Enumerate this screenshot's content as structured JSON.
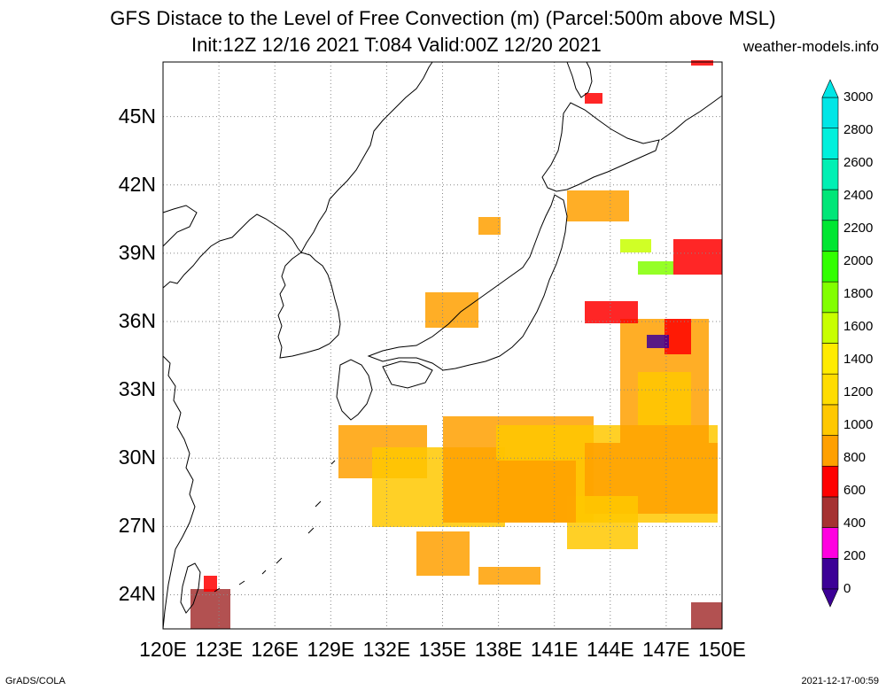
{
  "title": {
    "line1": "GFS Distace to the Level of Free Convection (m) (Parcel:500m above MSL)",
    "line2": "Init:12Z 12/16 2021 T:084 Valid:00Z 12/20 2021",
    "site": "weather-models.info"
  },
  "footer": {
    "left": "GrADS/COLA",
    "right": "2021-12-17-00:59"
  },
  "map": {
    "lon_range": [
      120,
      150
    ],
    "lat_range": [
      22.5,
      47.4
    ],
    "lon_labels": [
      "120E",
      "123E",
      "126E",
      "129E",
      "132E",
      "135E",
      "138E",
      "141E",
      "144E",
      "147E",
      "150E"
    ],
    "lat_labels": [
      "24N",
      "27N",
      "30N",
      "33N",
      "36N",
      "39N",
      "42N",
      "45N"
    ],
    "grid": "dotted"
  },
  "colorbar": {
    "labels": [
      "0",
      "200",
      "400",
      "600",
      "800",
      "1000",
      "1200",
      "1400",
      "1600",
      "1800",
      "2000",
      "2200",
      "2400",
      "2600",
      "2800",
      "3000"
    ],
    "colors": [
      "#3c0096",
      "#ff00e0",
      "#a53232",
      "#ff0000",
      "#ffa000",
      "#ffc800",
      "#ffdc00",
      "#ffeb00",
      "#c8ff00",
      "#82ff00",
      "#32ff00",
      "#00e632",
      "#00e678",
      "#00f0b4",
      "#00f0dc",
      "#00e6e6"
    ]
  }
}
